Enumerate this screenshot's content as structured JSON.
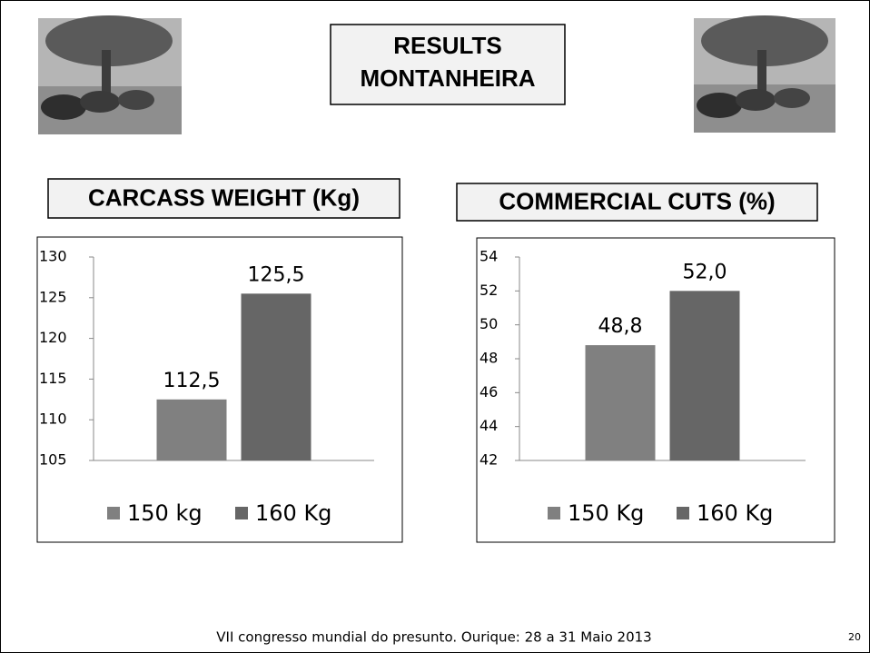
{
  "header": {
    "title": [
      "RESULTS",
      "MONTANHEIRA"
    ]
  },
  "chart_data": [
    {
      "type": "bar",
      "title": "CARCASS WEIGHT (Kg)",
      "categories": [
        null
      ],
      "series": [
        {
          "name": "150 kg",
          "color": "#808080",
          "values": [
            112.5
          ],
          "value_labels": [
            "112,5"
          ]
        },
        {
          "name": "160 Kg",
          "color": "#666666",
          "values": [
            125.5
          ],
          "value_labels": [
            "125,5"
          ]
        }
      ],
      "ylim": [
        105,
        130
      ],
      "yticks": [
        105,
        110,
        115,
        120,
        125,
        130
      ],
      "grid": false,
      "legend": "bottom"
    },
    {
      "type": "bar",
      "title": "COMMERCIAL CUTS (%)",
      "categories": [
        null
      ],
      "series": [
        {
          "name": "150 Kg",
          "color": "#808080",
          "values": [
            48.8
          ],
          "value_labels": [
            "48,8"
          ]
        },
        {
          "name": "160 Kg",
          "color": "#666666",
          "values": [
            52.0
          ],
          "value_labels": [
            "52,0"
          ]
        }
      ],
      "ylim": [
        42,
        54
      ],
      "yticks": [
        42,
        44,
        46,
        48,
        50,
        52,
        54
      ],
      "grid": false,
      "legend": "bottom"
    }
  ],
  "footer": {
    "text": "VII congresso mundial do presunto. Ourique: 28 a 31 Maio 2013",
    "page": "20"
  }
}
